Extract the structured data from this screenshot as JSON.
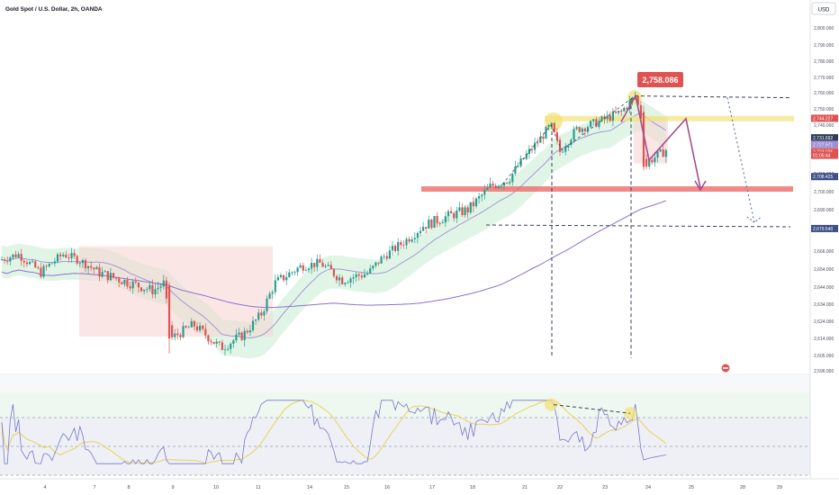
{
  "header": {
    "title": "Gold Spot / U.S. Dollar, 2h, OANDA",
    "currency": "USD"
  },
  "colors": {
    "up": "#2a9d8f",
    "down": "#e05252",
    "wma": "#9b8fd6",
    "sma": "#8e6fd0",
    "cloud_up": "#c8ecd3",
    "cloud_down": "#f6d3d0",
    "support": "#ef6c6c",
    "resistance": "#f2e27a",
    "path": "#a64d8c",
    "rsi": "#7a78c9",
    "rsi_ma": "#e8d25a"
  },
  "chart_data": [
    {
      "type": "candlestick",
      "ylim": [
        2596,
        2810
      ],
      "y_ticks": [
        "2,800.000",
        "2,790.000",
        "2,780.000",
        "2,770.000",
        "2,760.000",
        "2,750.000",
        "2,740.000",
        "2,730.000",
        "2,720.000",
        "2,710.000",
        "2,700.000",
        "2,690.000",
        "2,680.000",
        "2,666.000",
        "2,654.000",
        "2,644.000",
        "2,634.000",
        "2,624.000",
        "2,614.000",
        "2,605.000",
        "2,596.000"
      ],
      "y_tick_values": [
        2800,
        2790,
        2780,
        2770,
        2760,
        2750,
        2740,
        2730,
        2720,
        2710,
        2700,
        2690,
        2680,
        2666,
        2654,
        2644,
        2634,
        2624,
        2614,
        2605,
        2596
      ],
      "x_ticks": [
        "4",
        "7",
        "8",
        "9",
        "10",
        "11",
        "14",
        "15",
        "16",
        "17",
        "18",
        "21",
        "22",
        "23",
        "24",
        "25",
        "28",
        "29"
      ],
      "x_tick_pos": [
        50,
        105,
        143,
        192,
        240,
        287,
        344,
        385,
        430,
        480,
        525,
        583,
        622,
        672,
        720,
        768,
        825,
        866
      ],
      "price_badges": [
        {
          "label": "2,744.227",
          "value": 2744.2,
          "color": "#e05252"
        },
        {
          "label": "2,731.692",
          "value": 2731.7,
          "color": "#2f3e57"
        },
        {
          "label": "2,727.571",
          "value": 2727.6,
          "color": "#9b8fd6"
        },
        {
          "label": "2,723.025",
          "value": 2723.0,
          "color": "#e05252"
        },
        {
          "label": "01:05:44",
          "value": 2720.8,
          "color": "#e05252"
        },
        {
          "label": "2,708.425",
          "value": 2708.4,
          "color": "#3d4f86"
        },
        {
          "label": "2,679.540",
          "value": 2679.5,
          "color": "#3d4f86"
        }
      ],
      "annotations": {
        "peak_label": "2,758.086",
        "peak_value": 2758.086,
        "resistance_level": 2744,
        "support_level": 2701.5,
        "level_high": 2758,
        "level_low": 2681
      }
    },
    {
      "type": "line",
      "name": "RSI",
      "ylim": [
        30,
        85
      ],
      "y_ticks": [
        "80.00",
        "60.00",
        "40.00"
      ],
      "y_tick_values": [
        80,
        60,
        40
      ],
      "badges": [
        {
          "label": "50.37",
          "value": 50.37,
          "color": "#e8d25a"
        },
        {
          "label": "44.49",
          "value": 44.49,
          "color": "#7a78c9"
        }
      ],
      "bands": [
        70,
        50,
        30
      ]
    }
  ]
}
